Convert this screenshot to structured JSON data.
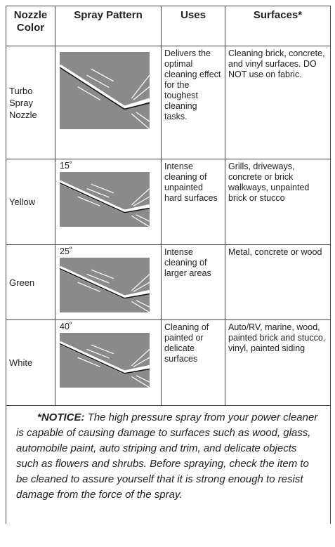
{
  "table": {
    "header": [
      "Nozzle Color",
      "Spray Pattern",
      "Uses",
      "Surfaces*"
    ],
    "rows": [
      {
        "color": "Turbo Spray Nozzle",
        "uses": "Delivers the optimal cleaning effect for the toughest cleaning tasks.",
        "surfaces": "Cleaning brick, concrete, and vinyl surfaces. DO NOT use on fabric."
      },
      {
        "color": "Yellow",
        "angle": "15˚",
        "uses": "Intense cleaning of unpainted hard surfaces",
        "surfaces": "Grills, driveways, concrete or brick walkways, unpainted brick or stucco"
      },
      {
        "color": "Green",
        "angle": "25˚",
        "uses": "Intense cleaning of larger areas",
        "surfaces": "Metal, concrete or wood"
      },
      {
        "color": "White",
        "angle": "40˚",
        "uses": "Cleaning of painted or delicate surfaces",
        "surfaces": "Auto/RV, marine, wood, painted brick and stucco, vinyl, painted siding"
      }
    ]
  },
  "notice": {
    "label": "*NOTICE:",
    "text": " The high pressure spray from your power cleaner is capable of causing damage to surfaces such as wood, glass, automobile paint, auto striping and trim, and delicate objects such as flowers and shrubs. Before spraying, check the item to be cleaned to assure yourself that it is strong enough to resist damage from the force of the spray."
  }
}
